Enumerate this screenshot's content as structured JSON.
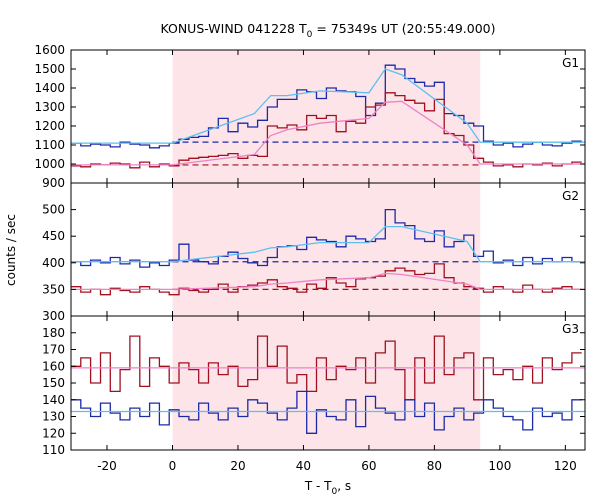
{
  "title": {
    "prefix": "KONUS-WIND 041228 T",
    "sub": "0",
    "suffix": " = 75349s UT (20:55:49.000)"
  },
  "xlabel": {
    "prefix": "T - T",
    "sub": "0",
    "suffix": ", s"
  },
  "ylabel": "counts / sec",
  "chart_data": {
    "type": "line",
    "x_ticks": [
      -20,
      0,
      20,
      40,
      60,
      80,
      100,
      120
    ],
    "xlim": [
      -31,
      126
    ],
    "shaded_interval": [
      0,
      94
    ],
    "colors": {
      "shade": "#fde4e8",
      "series_red": "#a01020",
      "series_blue": "#1c2aa8",
      "model_light_blue": "#5bc0f0",
      "model_pink": "#f080c8",
      "background_dashed_red": "#a01020",
      "background_dashed_blue": "#1c2aa8"
    },
    "panels": [
      {
        "name": "G1",
        "ylim": [
          900,
          1600
        ],
        "yticks": [
          900,
          1000,
          1100,
          1200,
          1300,
          1400,
          1500,
          1600
        ],
        "background_levels": {
          "blue": 1115,
          "red": 995
        },
        "series": [
          {
            "color": "blue",
            "x": [
              -31,
              -28,
              -25,
              -22,
              -19,
              -16,
              -13,
              -10,
              -7,
              -4,
              -1,
              2,
              5,
              8,
              11,
              14,
              17,
              20,
              23,
              26,
              29,
              32,
              35,
              38,
              41,
              44,
              47,
              50,
              53,
              56,
              59,
              62,
              65,
              68,
              71,
              74,
              77,
              80,
              83,
              86,
              89,
              92,
              95,
              98,
              101,
              104,
              107,
              110,
              113,
              116,
              119,
              122
            ],
            "y": [
              1110,
              1095,
              1105,
              1100,
              1090,
              1115,
              1105,
              1100,
              1085,
              1095,
              1110,
              1130,
              1140,
              1145,
              1190,
              1240,
              1170,
              1215,
              1195,
              1230,
              1300,
              1340,
              1340,
              1390,
              1380,
              1345,
              1400,
              1385,
              1380,
              1355,
              1255,
              1320,
              1520,
              1500,
              1450,
              1430,
              1410,
              1430,
              1265,
              1255,
              1215,
              1200,
              1120,
              1100,
              1110,
              1090,
              1105,
              1115,
              1100,
              1095,
              1110,
              1120
            ]
          },
          {
            "color": "red",
            "x": [
              -31,
              -28,
              -25,
              -22,
              -19,
              -16,
              -13,
              -10,
              -7,
              -4,
              -1,
              2,
              5,
              8,
              11,
              14,
              17,
              20,
              23,
              26,
              29,
              32,
              35,
              38,
              41,
              44,
              47,
              50,
              53,
              56,
              59,
              62,
              65,
              68,
              71,
              74,
              77,
              80,
              83,
              86,
              89,
              92,
              95,
              98,
              101,
              104,
              107,
              110,
              113,
              116,
              119,
              122
            ],
            "y": [
              990,
              985,
              1000,
              995,
              1005,
              1000,
              980,
              1010,
              985,
              1000,
              990,
              1020,
              1030,
              1035,
              1040,
              1045,
              1055,
              1030,
              1045,
              1040,
              1200,
              1190,
              1205,
              1180,
              1255,
              1240,
              1255,
              1170,
              1225,
              1215,
              1300,
              1310,
              1375,
              1360,
              1335,
              1320,
              1280,
              1340,
              1160,
              1150,
              1100,
              1030,
              1010,
              990,
              995,
              985,
              1000,
              995,
              1005,
              990,
              1000,
              1010
            ]
          },
          {
            "color": "light_blue_model",
            "x": [
              -31,
              0,
              25,
              30,
              35,
              45,
              60,
              65,
              70,
              90,
              94,
              126
            ],
            "y": [
              1110,
              1110,
              1265,
              1360,
              1360,
              1385,
              1375,
              1500,
              1470,
              1215,
              1115,
              1115
            ]
          },
          {
            "color": "pink_model",
            "x": [
              -31,
              0,
              25,
              30,
              35,
              45,
              60,
              65,
              70,
              90,
              94,
              126
            ],
            "y": [
              995,
              995,
              1050,
              1150,
              1180,
              1215,
              1240,
              1325,
              1330,
              1100,
              1000,
              1000
            ]
          }
        ]
      },
      {
        "name": "G2",
        "ylim": [
          300,
          550
        ],
        "yticks": [
          300,
          350,
          400,
          450,
          500
        ],
        "background_levels": {
          "blue": 402,
          "red": 350
        },
        "series": [
          {
            "color": "blue",
            "x": [
              -31,
              -28,
              -25,
              -22,
              -19,
              -16,
              -13,
              -10,
              -7,
              -4,
              -1,
              2,
              5,
              8,
              11,
              14,
              17,
              20,
              23,
              26,
              29,
              32,
              35,
              38,
              41,
              44,
              47,
              50,
              53,
              56,
              59,
              62,
              65,
              68,
              71,
              74,
              77,
              80,
              83,
              86,
              89,
              92,
              95,
              98,
              101,
              104,
              107,
              110,
              113,
              116,
              119,
              122
            ],
            "y": [
              402,
              395,
              405,
              400,
              410,
              398,
              405,
              392,
              400,
              395,
              405,
              435,
              405,
              402,
              398,
              412,
              420,
              408,
              400,
              395,
              410,
              430,
              432,
              425,
              448,
              443,
              440,
              430,
              450,
              445,
              440,
              445,
              500,
              475,
              470,
              445,
              440,
              460,
              430,
              440,
              452,
              412,
              422,
              400,
              405,
              395,
              410,
              398,
              408,
              402,
              410,
              402
            ]
          },
          {
            "color": "red",
            "x": [
              -31,
              -28,
              -25,
              -22,
              -19,
              -16,
              -13,
              -10,
              -7,
              -4,
              -1,
              2,
              5,
              8,
              11,
              14,
              17,
              20,
              23,
              26,
              29,
              32,
              35,
              38,
              41,
              44,
              47,
              50,
              53,
              56,
              59,
              62,
              65,
              68,
              71,
              74,
              77,
              80,
              83,
              86,
              89,
              92,
              95,
              98,
              101,
              104,
              107,
              110,
              113,
              116,
              119,
              122
            ],
            "y": [
              355,
              345,
              350,
              340,
              352,
              348,
              345,
              355,
              350,
              345,
              340,
              352,
              348,
              345,
              350,
              360,
              345,
              355,
              358,
              362,
              368,
              355,
              352,
              345,
              360,
              352,
              372,
              362,
              355,
              370,
              372,
              375,
              385,
              390,
              385,
              378,
              380,
              398,
              372,
              362,
              355,
              352,
              345,
              355,
              350,
              345,
              358,
              350,
              345,
              352,
              355,
              350
            ]
          },
          {
            "color": "light_blue_model",
            "x": [
              -31,
              0,
              25,
              30,
              35,
              45,
              60,
              65,
              70,
              90,
              94,
              126
            ],
            "y": [
              402,
              402,
              420,
              428,
              430,
              438,
              438,
              468,
              468,
              440,
              402,
              402
            ]
          },
          {
            "color": "pink_model",
            "x": [
              -31,
              0,
              25,
              30,
              35,
              45,
              60,
              65,
              70,
              90,
              94,
              126
            ],
            "y": [
              350,
              350,
              355,
              360,
              362,
              368,
              372,
              380,
              378,
              360,
              350,
              350
            ]
          }
        ]
      },
      {
        "name": "G3",
        "ylim": [
          110,
          190
        ],
        "yticks": [
          110,
          120,
          130,
          140,
          150,
          160,
          170,
          180
        ],
        "background_levels": {},
        "series": [
          {
            "color": "red",
            "x": [
              -31,
              -28,
              -25,
              -22,
              -19,
              -16,
              -13,
              -10,
              -7,
              -4,
              -1,
              2,
              5,
              8,
              11,
              14,
              17,
              20,
              23,
              26,
              29,
              32,
              35,
              38,
              41,
              44,
              47,
              50,
              53,
              56,
              59,
              62,
              65,
              68,
              71,
              74,
              77,
              80,
              83,
              86,
              89,
              92,
              95,
              98,
              101,
              104,
              107,
              110,
              113,
              116,
              119,
              122
            ],
            "y": [
              160,
              165,
              150,
              168,
              145,
              158,
              178,
              148,
              165,
              160,
              150,
              162,
              158,
              150,
              162,
              155,
              160,
              148,
              152,
              178,
              160,
              172,
              150,
              155,
              145,
              165,
              152,
              160,
              158,
              165,
              150,
              168,
              175,
              158,
              140,
              165,
              150,
              178,
              155,
              165,
              168,
              140,
              165,
              155,
              158,
              152,
              160,
              150,
              165,
              158,
              162,
              168
            ]
          },
          {
            "color": "blue",
            "x": [
              -31,
              -28,
              -25,
              -22,
              -19,
              -16,
              -13,
              -10,
              -7,
              -4,
              -1,
              2,
              5,
              8,
              11,
              14,
              17,
              20,
              23,
              26,
              29,
              32,
              35,
              38,
              41,
              44,
              47,
              50,
              53,
              56,
              59,
              62,
              65,
              68,
              71,
              74,
              77,
              80,
              83,
              86,
              89,
              92,
              95,
              98,
              101,
              104,
              107,
              110,
              113,
              116,
              119,
              122
            ],
            "y": [
              140,
              135,
              130,
              138,
              132,
              128,
              135,
              130,
              138,
              125,
              134,
              130,
              128,
              138,
              132,
              128,
              135,
              130,
              140,
              138,
              132,
              128,
              135,
              145,
              120,
              134,
              130,
              128,
              140,
              124,
              142,
              135,
              132,
              128,
              140,
              130,
              138,
              122,
              130,
              135,
              128,
              132,
              140,
              135,
              130,
              128,
              122,
              135,
              130,
              132,
              128,
              140
            ]
          },
          {
            "color": "pink_model",
            "x": [
              -31,
              126
            ],
            "y": [
              159,
              159
            ]
          },
          {
            "color": "light_blue_model",
            "x": [
              -31,
              126
            ],
            "y": [
              133,
              133
            ]
          }
        ]
      }
    ]
  }
}
